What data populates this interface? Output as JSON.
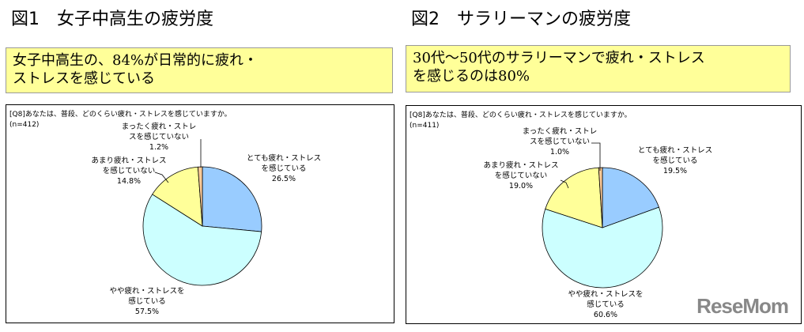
{
  "figures": [
    {
      "title": "図1　女子中高生の疲労度",
      "summary_lines": [
        "女子中高生の、84%が日常的に疲れ・",
        "ストレスを感じている"
      ]
    },
    {
      "title": "図2　サラリーマンの疲労度",
      "summary_lines": [
        "30代～50代のサラリーマンで疲れ・ストレス",
        "を感じるのは80%"
      ]
    }
  ],
  "watermark": "ReseMom",
  "chart_data": [
    {
      "type": "pie",
      "title": "[Q8]あなたは、普段、どのくらい疲れ・ストレスを感じていますか。",
      "subtitle": "(n=412)",
      "start": "12 o'clock, clockwise",
      "slices": [
        {
          "label": [
            "とても疲れ・ストレス",
            "を感じている"
          ],
          "value": 26.5,
          "value_label": "26.5%",
          "color": "#99ccff"
        },
        {
          "label": [
            "やや疲れ・ストレスを",
            "感じている"
          ],
          "value": 57.5,
          "value_label": "57.5%",
          "color": "#ccffff"
        },
        {
          "label": [
            "あまり疲れ・ストレス",
            "を感じていない"
          ],
          "value": 14.8,
          "value_label": "14.8%",
          "color": "#ffff99"
        },
        {
          "label": [
            "まったく疲れ・ストレ",
            "スを感じていない"
          ],
          "value": 1.2,
          "value_label": "1.2%",
          "color": "#ffcc99"
        }
      ]
    },
    {
      "type": "pie",
      "title": "[Q8]あなたは、普段、どのくらい疲れ・ストレスを感じていますか。",
      "subtitle": "(n=411)",
      "start": "12 o'clock, clockwise",
      "slices": [
        {
          "label": [
            "とても疲れ・ストレス",
            "を感じている"
          ],
          "value": 19.5,
          "value_label": "19.5%",
          "color": "#99ccff"
        },
        {
          "label": [
            "やや疲れ・ストレスを",
            "感じている"
          ],
          "value": 60.6,
          "value_label": "60.6%",
          "color": "#ccffff"
        },
        {
          "label": [
            "あまり疲れ・ストレス",
            "を感じていない"
          ],
          "value": 19.0,
          "value_label": "19.0%",
          "color": "#ffff99"
        },
        {
          "label": [
            "まったく疲れ・ストレ",
            "スを感じていない"
          ],
          "value": 1.0,
          "value_label": "1.0%",
          "color": "#ffcc99"
        }
      ]
    }
  ]
}
